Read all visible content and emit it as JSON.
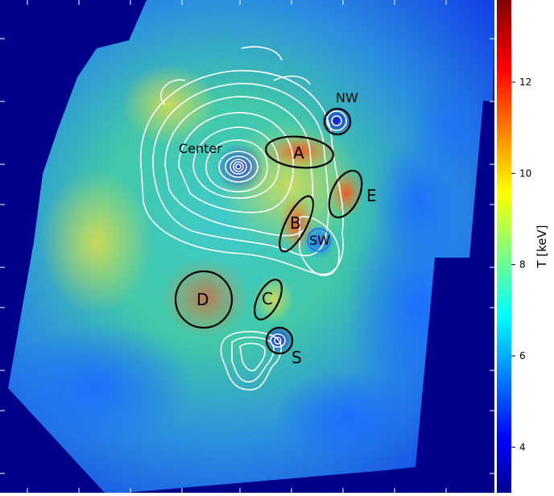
{
  "map": {
    "regions": [
      {
        "id": "center",
        "label": "Center"
      },
      {
        "id": "nw",
        "label": "NW"
      },
      {
        "id": "a",
        "label": "A"
      },
      {
        "id": "e",
        "label": "E"
      },
      {
        "id": "b",
        "label": "B"
      },
      {
        "id": "sw",
        "label": "SW"
      },
      {
        "id": "d",
        "label": "D"
      },
      {
        "id": "c",
        "label": "C"
      },
      {
        "id": "s",
        "label": "S"
      }
    ]
  },
  "colorbar": {
    "label": "T [keV]",
    "ticks": [
      "4",
      "6",
      "8",
      "10",
      "12"
    ],
    "range": [
      3.0,
      13.8
    ],
    "colormap": "jet"
  }
}
